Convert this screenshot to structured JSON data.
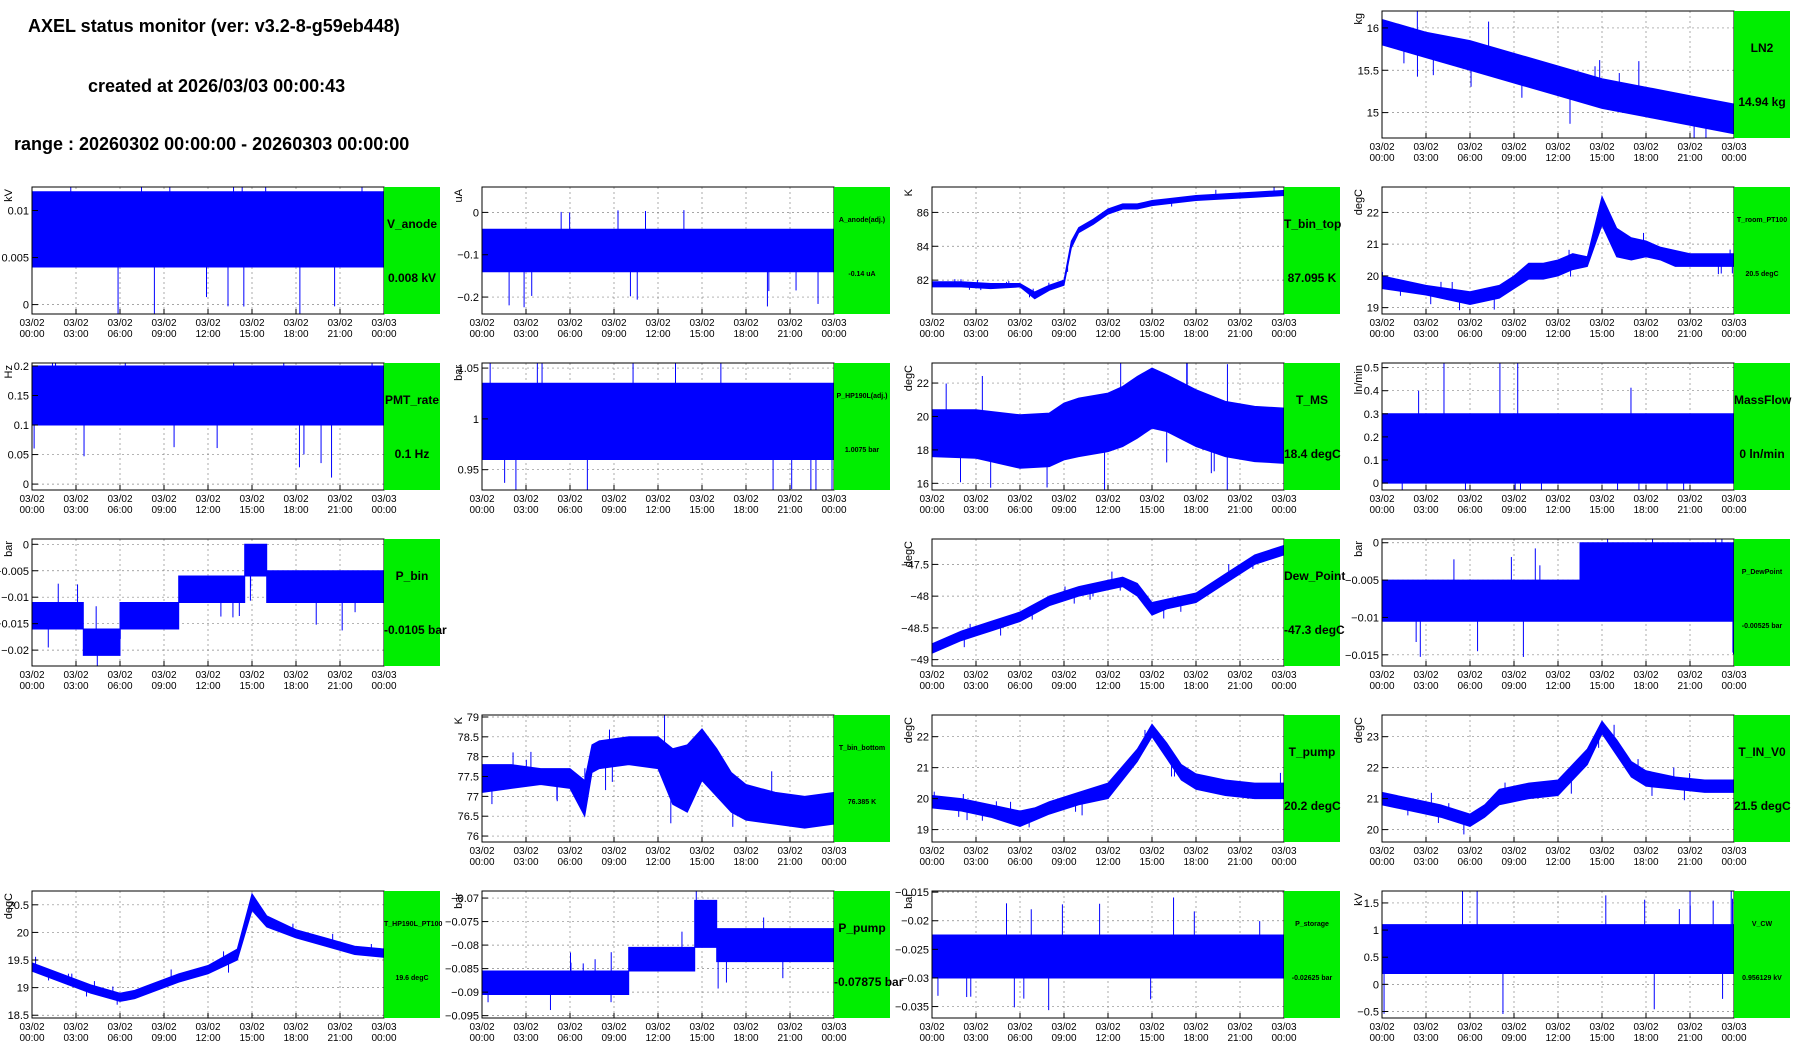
{
  "header": {
    "title": "AXEL status monitor (ver: v3.2-8-g59eb448)",
    "created": "created at 2026/03/03 00:00:43",
    "range": "range : 20260302 00:00:00 - 20260303 00:00:00"
  },
  "time_ticks": [
    "03/02\n00:00",
    "03/02\n03:00",
    "03/02\n06:00",
    "03/02\n09:00",
    "03/02\n12:00",
    "03/02\n15:00",
    "03/02\n18:00",
    "03/02\n21:00",
    "03/03\n00:00"
  ],
  "colors": {
    "series": "#0000ff",
    "badge": "#00ee00",
    "grid": "#888888"
  },
  "chart_data": [
    {
      "id": "LN2",
      "type": "line",
      "name": "LN2",
      "value_label": "14.94 kg",
      "ylabel": "kg",
      "xlim": [
        0,
        24
      ],
      "ylim": [
        14.7,
        16.2
      ],
      "yticks": [
        {
          "v": 15,
          "t": "15"
        },
        {
          "v": 15.5,
          "t": "15.5"
        },
        {
          "v": 16,
          "t": "16"
        }
      ],
      "fill": true,
      "x": [
        0,
        3,
        6,
        9,
        12,
        15,
        18,
        21,
        24
      ],
      "lo": [
        15.8,
        15.65,
        15.5,
        15.35,
        15.2,
        15.05,
        14.95,
        14.85,
        14.75
      ],
      "hi": [
        16.1,
        15.95,
        15.85,
        15.7,
        15.55,
        15.4,
        15.3,
        15.2,
        15.1
      ]
    },
    {
      "id": "V_anode",
      "type": "line",
      "name": "V_anode",
      "value_label": "0.008 kV",
      "ylabel": "kV",
      "xlim": [
        0,
        24
      ],
      "ylim": [
        -0.001,
        0.0125
      ],
      "yticks": [
        {
          "v": 0,
          "t": "0"
        },
        {
          "v": 0.005,
          "t": "0.005"
        },
        {
          "v": 0.01,
          "t": "0.01"
        }
      ],
      "fill": true,
      "x": [
        0,
        24
      ],
      "lo": [
        0.004,
        0.004
      ],
      "hi": [
        0.012,
        0.012
      ]
    },
    {
      "id": "A_anode",
      "type": "line",
      "name": "A_anode(adj.)",
      "value_label": "-0.14 uA",
      "ylabel": "uA",
      "xlim": [
        0,
        24
      ],
      "ylim": [
        -0.24,
        0.06
      ],
      "yticks": [
        {
          "v": -0.2,
          "t": "−0.2"
        },
        {
          "v": -0.1,
          "t": "−0.1"
        },
        {
          "v": 0,
          "t": "0"
        }
      ],
      "fill": true,
      "x": [
        0,
        24
      ],
      "lo": [
        -0.14,
        -0.14
      ],
      "hi": [
        -0.04,
        -0.04
      ]
    },
    {
      "id": "T_bin_top",
      "type": "line",
      "name": "T_bin_top",
      "value_label": "87.095 K",
      "ylabel": "K",
      "xlim": [
        0,
        24
      ],
      "ylim": [
        80,
        87.5
      ],
      "yticks": [
        {
          "v": 82,
          "t": "82"
        },
        {
          "v": 84,
          "t": "84"
        },
        {
          "v": 86,
          "t": "86"
        }
      ],
      "fill": true,
      "x": [
        0,
        2,
        4,
        6,
        7,
        8,
        9,
        9.5,
        10,
        11,
        12,
        13,
        14,
        15,
        16,
        18,
        20,
        22,
        24
      ],
      "lo": [
        81.6,
        81.6,
        81.5,
        81.6,
        80.9,
        81.4,
        81.7,
        83.9,
        84.8,
        85.3,
        85.9,
        86.2,
        86.2,
        86.4,
        86.5,
        86.7,
        86.8,
        86.9,
        87.0
      ],
      "hi": [
        81.9,
        81.9,
        81.8,
        81.8,
        81.3,
        81.7,
        82.0,
        84.3,
        85.1,
        85.6,
        86.2,
        86.5,
        86.5,
        86.7,
        86.8,
        87.0,
        87.1,
        87.2,
        87.3
      ]
    },
    {
      "id": "T_room",
      "type": "line",
      "name": "T_room_PT100",
      "value_label": "20.5 degC",
      "ylabel": "degC",
      "xlim": [
        0,
        24
      ],
      "ylim": [
        18.8,
        22.8
      ],
      "yticks": [
        {
          "v": 19,
          "t": "19"
        },
        {
          "v": 20,
          "t": "20"
        },
        {
          "v": 21,
          "t": "21"
        },
        {
          "v": 22,
          "t": "22"
        }
      ],
      "fill": true,
      "x": [
        0,
        3,
        6,
        8,
        9,
        10,
        11,
        12,
        13,
        14,
        15,
        16,
        17,
        18,
        19,
        20,
        21,
        22,
        23,
        24
      ],
      "lo": [
        19.6,
        19.4,
        19.1,
        19.3,
        19.6,
        19.9,
        19.9,
        20.0,
        20.2,
        20.3,
        21.6,
        20.6,
        20.5,
        20.6,
        20.5,
        20.3,
        20.3,
        20.3,
        20.3,
        20.3
      ],
      "hi": [
        20.0,
        19.7,
        19.5,
        19.7,
        20.0,
        20.4,
        20.4,
        20.5,
        20.7,
        20.6,
        22.5,
        21.5,
        21.2,
        21.1,
        20.9,
        20.8,
        20.7,
        20.7,
        20.7,
        20.7
      ]
    },
    {
      "id": "PMT_rate",
      "type": "line",
      "name": "PMT_rate",
      "value_label": "0.1 Hz",
      "ylabel": "Hz",
      "xlim": [
        0,
        24
      ],
      "ylim": [
        -0.01,
        0.205
      ],
      "yticks": [
        {
          "v": 0,
          "t": "0"
        },
        {
          "v": 0.05,
          "t": "0.05"
        },
        {
          "v": 0.1,
          "t": "0.1"
        },
        {
          "v": 0.15,
          "t": "0.15"
        },
        {
          "v": 0.2,
          "t": "0.2"
        }
      ],
      "fill": true,
      "x": [
        0,
        24
      ],
      "lo": [
        0.1,
        0.1
      ],
      "hi": [
        0.2,
        0.2
      ]
    },
    {
      "id": "P_HP",
      "type": "line",
      "name": "P_HP190L(adj.)",
      "value_label": "1.0075 bar",
      "ylabel": "bar",
      "xlim": [
        0,
        24
      ],
      "ylim": [
        0.93,
        1.055
      ],
      "yticks": [
        {
          "v": 0.95,
          "t": "0.95"
        },
        {
          "v": 1,
          "t": "1"
        },
        {
          "v": 1.05,
          "t": "1.05"
        }
      ],
      "fill": true,
      "x": [
        0,
        24
      ],
      "lo": [
        0.96,
        0.96
      ],
      "hi": [
        1.035,
        1.035
      ]
    },
    {
      "id": "T_MS",
      "type": "line",
      "name": "T_MS",
      "value_label": "18.4 degC",
      "ylabel": "degC",
      "xlim": [
        0,
        24
      ],
      "ylim": [
        15.6,
        23.2
      ],
      "yticks": [
        {
          "v": 16,
          "t": "16"
        },
        {
          "v": 18,
          "t": "18"
        },
        {
          "v": 20,
          "t": "20"
        },
        {
          "v": 22,
          "t": "22"
        }
      ],
      "fill": true,
      "x": [
        0,
        3,
        6,
        8,
        9,
        10,
        12,
        13,
        14,
        15,
        16,
        18,
        20,
        22,
        24
      ],
      "lo": [
        17.6,
        17.5,
        16.9,
        17.0,
        17.4,
        17.6,
        17.9,
        18.2,
        18.7,
        19.3,
        19.1,
        18.2,
        17.6,
        17.3,
        17.2
      ],
      "hi": [
        20.4,
        20.4,
        20.1,
        20.2,
        20.8,
        21.1,
        21.4,
        21.8,
        22.4,
        22.9,
        22.5,
        21.6,
        20.9,
        20.6,
        20.5
      ]
    },
    {
      "id": "MassFlow",
      "type": "line",
      "name": "MassFlow",
      "value_label": "0 ln/min",
      "ylabel": "ln/min",
      "xlim": [
        0,
        24
      ],
      "ylim": [
        -0.03,
        0.52
      ],
      "yticks": [
        {
          "v": 0,
          "t": "0"
        },
        {
          "v": 0.1,
          "t": "0.1"
        },
        {
          "v": 0.2,
          "t": "0.2"
        },
        {
          "v": 0.3,
          "t": "0.3"
        },
        {
          "v": 0.4,
          "t": "0.4"
        },
        {
          "v": 0.5,
          "t": "0.5"
        }
      ],
      "fill": true,
      "x": [
        0,
        24
      ],
      "lo": [
        0,
        0
      ],
      "hi": [
        0.3,
        0.3
      ]
    },
    {
      "id": "P_bin",
      "type": "line",
      "name": "P_bin",
      "value_label": "-0.0105 bar",
      "ylabel": "bar",
      "xlim": [
        0,
        24
      ],
      "ylim": [
        -0.023,
        0.001
      ],
      "yticks": [
        {
          "v": -0.02,
          "t": "−0.02"
        },
        {
          "v": -0.015,
          "t": "−0.015"
        },
        {
          "v": -0.01,
          "t": "−0.01"
        },
        {
          "v": -0.005,
          "t": "−0.005"
        },
        {
          "v": 0,
          "t": "0"
        }
      ],
      "fill": true,
      "x": [
        0,
        3.5,
        3.5,
        6,
        6,
        10,
        10,
        14.5,
        14.5,
        16,
        16,
        24
      ],
      "lo": [
        -0.016,
        -0.016,
        -0.021,
        -0.021,
        -0.016,
        -0.016,
        -0.011,
        -0.011,
        -0.006,
        -0.006,
        -0.011,
        -0.011
      ],
      "hi": [
        -0.011,
        -0.011,
        -0.016,
        -0.016,
        -0.011,
        -0.011,
        -0.006,
        -0.006,
        0,
        0,
        -0.005,
        -0.005
      ]
    },
    {
      "id": "Dew_Point",
      "type": "line",
      "name": "Dew_Point",
      "value_label": "-47.3 degC",
      "ylabel": "degC",
      "xlim": [
        0,
        24
      ],
      "ylim": [
        -49.1,
        -47.1
      ],
      "yticks": [
        {
          "v": -49,
          "t": "−49"
        },
        {
          "v": -48.5,
          "t": "−48.5"
        },
        {
          "v": -48,
          "t": "−48"
        },
        {
          "v": -47.5,
          "t": "−47.5"
        }
      ],
      "fill": true,
      "x": [
        0,
        2,
        4,
        6,
        8,
        10,
        12,
        13,
        14,
        15,
        16,
        18,
        20,
        22,
        24
      ],
      "lo": [
        -48.9,
        -48.7,
        -48.55,
        -48.4,
        -48.15,
        -48.0,
        -47.9,
        -47.85,
        -48.0,
        -48.3,
        -48.2,
        -48.1,
        -47.8,
        -47.5,
        -47.35
      ],
      "hi": [
        -48.75,
        -48.55,
        -48.4,
        -48.25,
        -48.0,
        -47.85,
        -47.75,
        -47.7,
        -47.8,
        -48.1,
        -48.05,
        -47.95,
        -47.65,
        -47.35,
        -47.2
      ]
    },
    {
      "id": "P_DewPoint",
      "type": "line",
      "name": "P_DewPoint",
      "value_label": "-0.00525 bar",
      "ylabel": "bar",
      "xlim": [
        0,
        24
      ],
      "ylim": [
        -0.0165,
        0.0005
      ],
      "yticks": [
        {
          "v": -0.015,
          "t": "−0.015"
        },
        {
          "v": -0.01,
          "t": "−0.01"
        },
        {
          "v": -0.005,
          "t": "−0.005"
        },
        {
          "v": 0,
          "t": "0"
        }
      ],
      "fill": true,
      "x": [
        0,
        13.5,
        13.5,
        24
      ],
      "lo": [
        -0.0105,
        -0.0105,
        -0.0105,
        -0.0105
      ],
      "hi": [
        -0.005,
        -0.005,
        0,
        0
      ]
    },
    {
      "id": "T_bin_bottom",
      "type": "line",
      "name": "T_bin_bottom",
      "value_label": "76.385 K",
      "ylabel": "K",
      "xlim": [
        0,
        24
      ],
      "ylim": [
        75.85,
        79.05
      ],
      "yticks": [
        {
          "v": 76,
          "t": "76"
        },
        {
          "v": 76.5,
          "t": "76.5"
        },
        {
          "v": 77,
          "t": "77"
        },
        {
          "v": 77.5,
          "t": "77.5"
        },
        {
          "v": 78,
          "t": "78"
        },
        {
          "v": 78.5,
          "t": "78.5"
        },
        {
          "v": 79,
          "t": "79"
        }
      ],
      "fill": true,
      "x": [
        0,
        2,
        4,
        6,
        7,
        7.5,
        8,
        10,
        12,
        13,
        14,
        15,
        16,
        17,
        18,
        20,
        22,
        24
      ],
      "lo": [
        77.1,
        77.2,
        77.3,
        77.2,
        76.5,
        77.6,
        77.7,
        77.8,
        77.7,
        76.8,
        76.6,
        77.4,
        77.0,
        76.6,
        76.4,
        76.3,
        76.2,
        76.3
      ],
      "hi": [
        77.8,
        77.8,
        77.7,
        77.7,
        77.4,
        78.3,
        78.4,
        78.5,
        78.5,
        78.2,
        78.3,
        78.7,
        78.2,
        77.6,
        77.3,
        77.1,
        77.0,
        77.1
      ]
    },
    {
      "id": "T_pump",
      "type": "line",
      "name": "T_pump",
      "value_label": "20.2 degC",
      "ylabel": "degC",
      "xlim": [
        0,
        24
      ],
      "ylim": [
        18.6,
        22.7
      ],
      "yticks": [
        {
          "v": 19,
          "t": "19"
        },
        {
          "v": 20,
          "t": "20"
        },
        {
          "v": 21,
          "t": "21"
        },
        {
          "v": 22,
          "t": "22"
        }
      ],
      "fill": true,
      "x": [
        0,
        2,
        4,
        6,
        7,
        8,
        10,
        12,
        14,
        15,
        16,
        17,
        18,
        20,
        22,
        24
      ],
      "lo": [
        19.7,
        19.6,
        19.4,
        19.1,
        19.3,
        19.5,
        19.8,
        20.0,
        21.2,
        22.0,
        21.3,
        20.6,
        20.3,
        20.1,
        20.0,
        20.0
      ],
      "hi": [
        20.1,
        20.0,
        19.8,
        19.6,
        19.7,
        19.9,
        20.2,
        20.5,
        21.6,
        22.4,
        21.8,
        21.1,
        20.8,
        20.6,
        20.5,
        20.5
      ]
    },
    {
      "id": "T_IN_V0",
      "type": "line",
      "name": "T_IN_V0",
      "value_label": "21.5 degC",
      "ylabel": "degC",
      "xlim": [
        0,
        24
      ],
      "ylim": [
        19.6,
        23.7
      ],
      "yticks": [
        {
          "v": 20,
          "t": "20"
        },
        {
          "v": 21,
          "t": "21"
        },
        {
          "v": 22,
          "t": "22"
        },
        {
          "v": 23,
          "t": "23"
        }
      ],
      "fill": true,
      "x": [
        0,
        2,
        4,
        6,
        7,
        8,
        10,
        12,
        14,
        15,
        16,
        17,
        18,
        20,
        22,
        24
      ],
      "lo": [
        20.8,
        20.6,
        20.4,
        20.1,
        20.4,
        20.8,
        21.0,
        21.1,
        22.1,
        23.1,
        22.4,
        21.7,
        21.4,
        21.3,
        21.2,
        21.2
      ],
      "hi": [
        21.2,
        21.0,
        20.8,
        20.5,
        20.8,
        21.3,
        21.5,
        21.6,
        22.6,
        23.5,
        22.9,
        22.2,
        21.9,
        21.7,
        21.6,
        21.6
      ]
    },
    {
      "id": "T_HP",
      "type": "line",
      "name": "T_HP190L_PT100",
      "value_label": "19.6 degC",
      "ylabel": "degC",
      "xlim": [
        0,
        24
      ],
      "ylim": [
        18.45,
        20.75
      ],
      "yticks": [
        {
          "v": 18.5,
          "t": "18.5"
        },
        {
          "v": 19,
          "t": "19"
        },
        {
          "v": 19.5,
          "t": "19.5"
        },
        {
          "v": 20,
          "t": "20"
        },
        {
          "v": 20.5,
          "t": "20.5"
        }
      ],
      "fill": true,
      "x": [
        0,
        2,
        4,
        6,
        7,
        8,
        10,
        12,
        14,
        15,
        16,
        18,
        20,
        22,
        24
      ],
      "lo": [
        19.3,
        19.1,
        18.9,
        18.75,
        18.8,
        18.9,
        19.1,
        19.25,
        19.5,
        20.4,
        20.1,
        19.9,
        19.75,
        19.6,
        19.55
      ],
      "hi": [
        19.45,
        19.25,
        19.05,
        18.9,
        18.95,
        19.05,
        19.25,
        19.4,
        19.7,
        20.7,
        20.3,
        20.05,
        19.9,
        19.75,
        19.7
      ]
    },
    {
      "id": "P_pump",
      "type": "line",
      "name": "P_pump",
      "value_label": "-0.07875 bar",
      "ylabel": "bar",
      "xlim": [
        0,
        24
      ],
      "ylim": [
        -0.0955,
        -0.0685
      ],
      "yticks": [
        {
          "v": -0.095,
          "t": "−0.095"
        },
        {
          "v": -0.09,
          "t": "−0.09"
        },
        {
          "v": -0.085,
          "t": "−0.085"
        },
        {
          "v": -0.08,
          "t": "−0.08"
        },
        {
          "v": -0.075,
          "t": "−0.075"
        },
        {
          "v": -0.07,
          "t": "−0.07"
        }
      ],
      "fill": true,
      "x": [
        0,
        10,
        10,
        14.5,
        14.5,
        16,
        16,
        24
      ],
      "lo": [
        -0.0905,
        -0.0905,
        -0.0855,
        -0.0855,
        -0.0805,
        -0.0805,
        -0.0835,
        -0.0835
      ],
      "hi": [
        -0.0855,
        -0.0855,
        -0.0805,
        -0.0805,
        -0.0705,
        -0.0705,
        -0.0765,
        -0.0765
      ]
    },
    {
      "id": "P_storage",
      "type": "line",
      "name": "P_storage",
      "value_label": "-0.02625 bar",
      "ylabel": "bar",
      "xlim": [
        0,
        24
      ],
      "ylim": [
        -0.037,
        -0.0148
      ],
      "yticks": [
        {
          "v": -0.035,
          "t": "−0.035"
        },
        {
          "v": -0.03,
          "t": "−0.03"
        },
        {
          "v": -0.025,
          "t": "−0.025"
        },
        {
          "v": -0.02,
          "t": "−0.02"
        },
        {
          "v": -0.015,
          "t": "−0.015"
        }
      ],
      "fill": true,
      "x": [
        0,
        24
      ],
      "lo": [
        -0.03,
        -0.03
      ],
      "hi": [
        -0.0225,
        -0.0225
      ]
    },
    {
      "id": "V_CW",
      "type": "line",
      "name": "V_CW",
      "value_label": "0.956129 kV",
      "ylabel": "kV",
      "xlim": [
        0,
        24
      ],
      "ylim": [
        -0.62,
        1.72
      ],
      "yticks": [
        {
          "v": -0.5,
          "t": "−0.5"
        },
        {
          "v": 0,
          "t": "0"
        },
        {
          "v": 0.5,
          "t": "0.5"
        },
        {
          "v": 1,
          "t": "1"
        },
        {
          "v": 1.5,
          "t": "1.5"
        }
      ],
      "fill": true,
      "x": [
        0,
        24
      ],
      "lo": [
        0.2,
        0.2
      ],
      "hi": [
        1.1,
        1.1
      ]
    }
  ]
}
